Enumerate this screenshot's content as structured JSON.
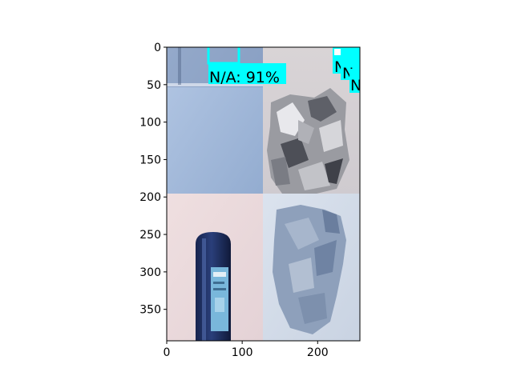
{
  "figure": {
    "x_ticks": [
      "0",
      "100",
      "200"
    ],
    "y_ticks": [
      "0",
      "50",
      "100",
      "150",
      "200",
      "250",
      "300",
      "350"
    ],
    "x_tick_values": [
      0,
      100,
      200
    ],
    "y_tick_values": [
      0,
      50,
      100,
      150,
      200,
      250,
      300,
      350
    ],
    "x_range": [
      0,
      256
    ],
    "y_range": [
      0,
      392
    ],
    "colors": {
      "detection": "#00ffff",
      "axis": "#000000",
      "background": "#ffffff"
    }
  },
  "image": {
    "panels": [
      {
        "name": "blue-paper",
        "colors": [
          "#a9bfdf",
          "#8aa4c9"
        ]
      },
      {
        "name": "aluminium-foil",
        "colors": [
          "#d7d3d5",
          "#8e8f95"
        ]
      },
      {
        "name": "glass-bottle",
        "colors": [
          "#ead9dc",
          "#1d2d5c"
        ]
      },
      {
        "name": "crumpled-paper",
        "colors": [
          "#d2dae6",
          "#8ea0bb"
        ]
      }
    ]
  },
  "detections": [
    {
      "label": "N/A: 91%"
    },
    {
      "label": "N"
    },
    {
      "label": "N"
    },
    {
      "label": "N"
    }
  ]
}
